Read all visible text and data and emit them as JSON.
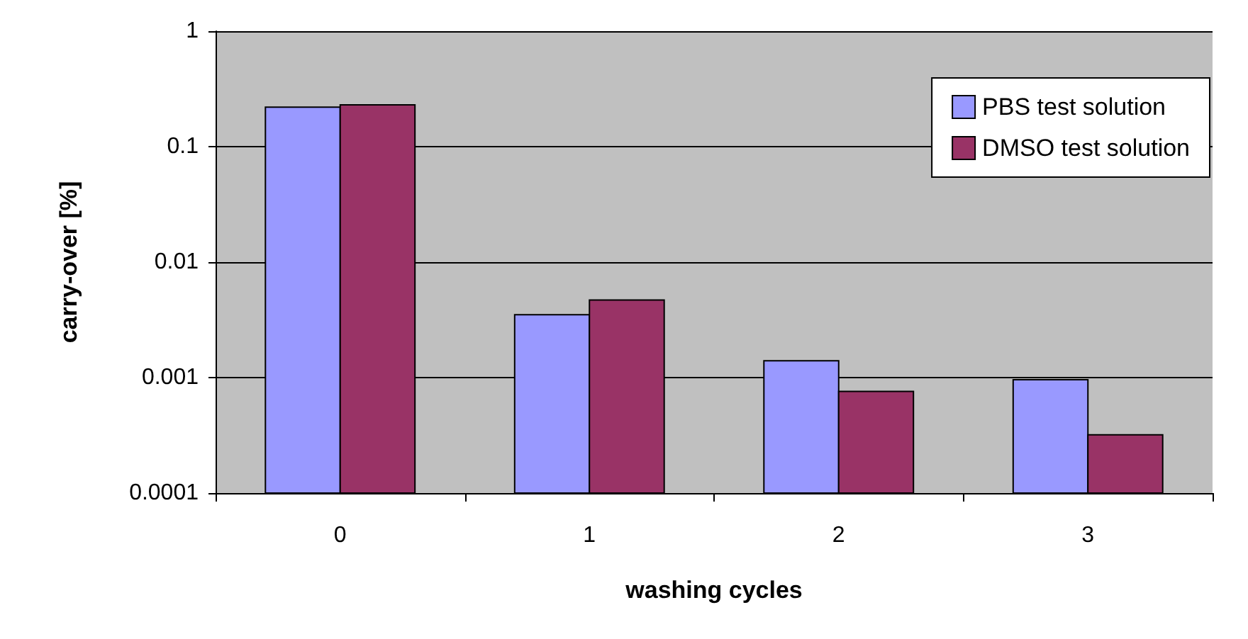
{
  "chart_data": {
    "type": "bar",
    "xlabel": "washing cycles",
    "ylabel": "carry-over [%]",
    "categories": [
      "0",
      "1",
      "2",
      "3"
    ],
    "series": [
      {
        "name": "PBS test solution",
        "color": "#9999ff",
        "values": [
          0.22,
          0.0035,
          0.0014,
          0.00096
        ]
      },
      {
        "name": "DMSO test solution",
        "color": "#993366",
        "values": [
          0.23,
          0.0047,
          0.00076,
          0.00032
        ]
      }
    ],
    "log": "y",
    "ylim": [
      0.0001,
      1
    ],
    "yticks": [
      0.0001,
      0.001,
      0.01,
      0.1,
      1
    ],
    "grid": "y",
    "legend": "top right"
  }
}
